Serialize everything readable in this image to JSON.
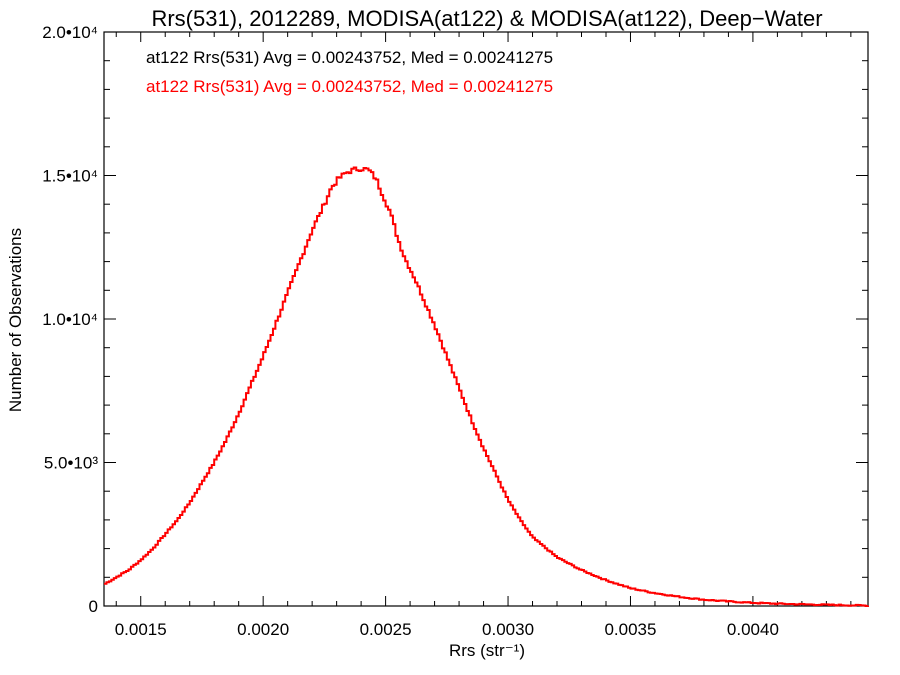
{
  "chart_data": {
    "type": "histogram-step",
    "title": "Rrs(531), 2012289, MODISA(at122) & MODISA(at122), Deep−Water",
    "xlabel": "Rrs (str⁻¹)",
    "ylabel": "Number of Observations",
    "xlim": [
      0.00135,
      0.00447
    ],
    "ylim": [
      0,
      20000
    ],
    "x_ticks": [
      {
        "value": 0.0015,
        "label": "0.0015"
      },
      {
        "value": 0.002,
        "label": "0.0020"
      },
      {
        "value": 0.0025,
        "label": "0.0025"
      },
      {
        "value": 0.003,
        "label": "0.0030"
      },
      {
        "value": 0.0035,
        "label": "0.0035"
      },
      {
        "value": 0.004,
        "label": "0.0040"
      }
    ],
    "y_ticks": [
      {
        "value": 0,
        "label": "0"
      },
      {
        "value": 5000,
        "label": "5.0•10³"
      },
      {
        "value": 10000,
        "label": "1.0•10⁴"
      },
      {
        "value": 15000,
        "label": "1.5•10⁴"
      },
      {
        "value": 20000,
        "label": "2.0•10⁴"
      }
    ],
    "annotations": [
      {
        "text": "at122 Rrs(531) Avg = 0.00243752, Med = 0.00241275",
        "color": "#000000"
      },
      {
        "text": "at122 Rrs(531) Avg = 0.00243752, Med = 0.00241275",
        "color": "#ff0000"
      }
    ],
    "series": [
      {
        "color": "#ff0000",
        "x": [
          0.00135,
          0.0014,
          0.00145,
          0.0015,
          0.00155,
          0.0016,
          0.00165,
          0.0017,
          0.00175,
          0.0018,
          0.00185,
          0.0019,
          0.00195,
          0.002,
          0.00205,
          0.0021,
          0.00215,
          0.0022,
          0.00225,
          0.00228,
          0.00231,
          0.00234,
          0.00237,
          0.0024,
          0.00243,
          0.00246,
          0.00249,
          0.00252,
          0.00255,
          0.00258,
          0.00262,
          0.00266,
          0.0027,
          0.00275,
          0.0028,
          0.00285,
          0.0029,
          0.00295,
          0.003,
          0.00305,
          0.0031,
          0.0032,
          0.0033,
          0.0034,
          0.0035,
          0.0036,
          0.0037,
          0.0038,
          0.0039,
          0.004,
          0.0041,
          0.0042,
          0.0043,
          0.0044,
          0.00447
        ],
        "y": [
          750,
          1000,
          1250,
          1600,
          2000,
          2500,
          3000,
          3600,
          4300,
          5000,
          5800,
          6700,
          7700,
          8700,
          9800,
          10900,
          12000,
          13100,
          14000,
          14600,
          14900,
          15100,
          15200,
          15250,
          15200,
          14900,
          14300,
          13700,
          12800,
          12100,
          11400,
          10600,
          9800,
          8700,
          7600,
          6500,
          5500,
          4600,
          3700,
          3000,
          2400,
          1700,
          1250,
          900,
          620,
          450,
          320,
          220,
          160,
          110,
          80,
          60,
          40,
          25,
          15
        ]
      }
    ]
  }
}
